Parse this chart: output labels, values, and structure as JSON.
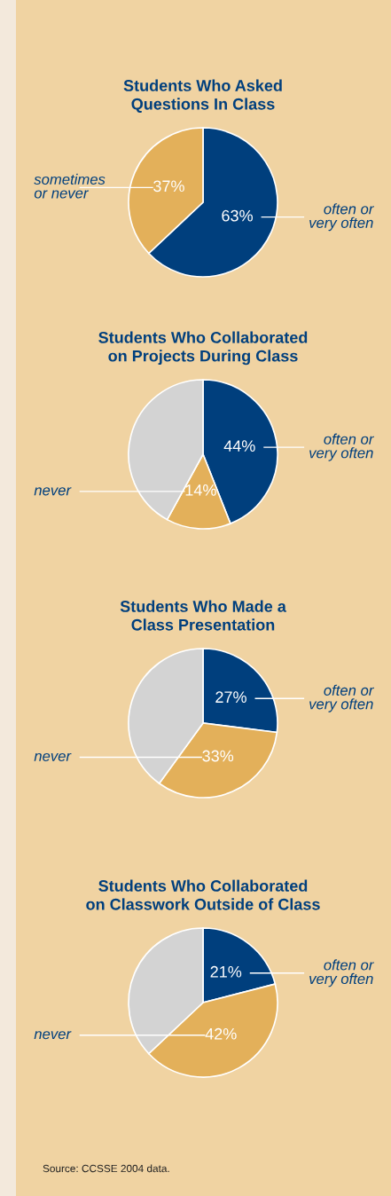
{
  "chart_data": [
    {
      "type": "pie",
      "title": "Students Who Asked\nQuestions In Class",
      "categories": [
        "often or\nvery often",
        "sometimes\nor never"
      ],
      "values": [
        63,
        37
      ],
      "colors": [
        "#003f7d",
        "#e3b05a"
      ],
      "value_labels": [
        "63%",
        "37%"
      ],
      "legend": false
    },
    {
      "type": "pie",
      "title": "Students Who Collaborated\non Projects During Class",
      "categories": [
        "often or\nvery often",
        "never",
        null
      ],
      "values": [
        44,
        14,
        42
      ],
      "colors": [
        "#003f7d",
        "#e3b05a",
        "#d3d3d3"
      ],
      "value_labels": [
        "44%",
        "14%",
        null
      ],
      "legend": false
    },
    {
      "type": "pie",
      "title": "Students Who Made a\nClass Presentation",
      "categories": [
        "often or\nvery often",
        "never",
        null
      ],
      "values": [
        27,
        33,
        40
      ],
      "colors": [
        "#003f7d",
        "#e3b05a",
        "#d3d3d3"
      ],
      "value_labels": [
        "27%",
        "33%",
        null
      ],
      "legend": false
    },
    {
      "type": "pie",
      "title": "Students Who Collaborated\non Classwork Outside of Class",
      "categories": [
        "often or\nvery often",
        "never",
        null
      ],
      "values": [
        21,
        42,
        37
      ],
      "colors": [
        "#003f7d",
        "#e3b05a",
        "#d3d3d3"
      ],
      "value_labels": [
        "21%",
        "42%",
        null
      ],
      "legend": false,
      "annotations": [
        "Source: CCSSE 2004 data."
      ]
    }
  ]
}
